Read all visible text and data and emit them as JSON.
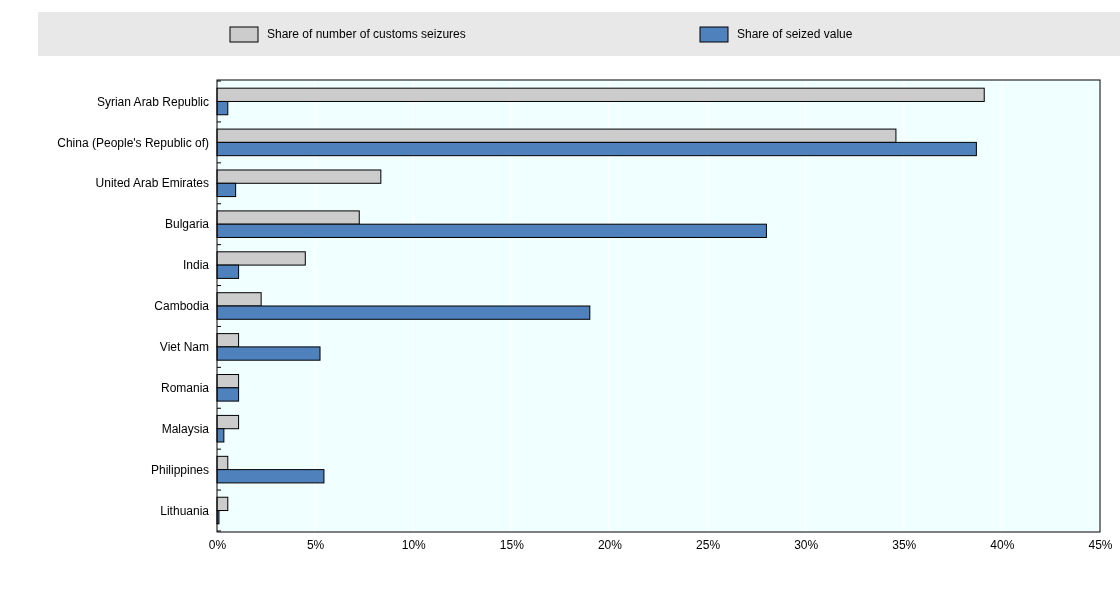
{
  "chart_data": {
    "type": "bar",
    "orientation": "horizontal",
    "categories": [
      "Syrian Arab Republic",
      "China (People's Republic of)",
      "United Arab Emirates",
      "Bulgaria",
      "India",
      "Cambodia",
      "Viet Nam",
      "Romania",
      "Malaysia",
      "Philippines",
      "Lithuania"
    ],
    "series": [
      {
        "name": "Share of number of customs seizures",
        "color": "#cccccc",
        "values": [
          39.1,
          34.6,
          8.35,
          7.25,
          4.5,
          2.25,
          1.1,
          1.1,
          1.1,
          0.55,
          0.55
        ]
      },
      {
        "name": "Share of seized value",
        "color": "#4f81bd",
        "values": [
          0.55,
          38.7,
          0.95,
          28.0,
          1.1,
          19.0,
          5.25,
          1.1,
          0.35,
          5.45,
          0.1
        ]
      }
    ],
    "xlim": [
      0,
      45
    ],
    "xticks": [
      {
        "value": 0,
        "label": "0%"
      },
      {
        "value": 5,
        "label": "5%"
      },
      {
        "value": 10,
        "label": "10%"
      },
      {
        "value": 15,
        "label": "15%"
      },
      {
        "value": 20,
        "label": "20%"
      },
      {
        "value": 25,
        "label": "25%"
      },
      {
        "value": 30,
        "label": "30%"
      },
      {
        "value": 35,
        "label": "35%"
      },
      {
        "value": 40,
        "label": "40%"
      },
      {
        "value": 45,
        "label": "45%"
      }
    ],
    "grid": "x",
    "legend": "top"
  }
}
